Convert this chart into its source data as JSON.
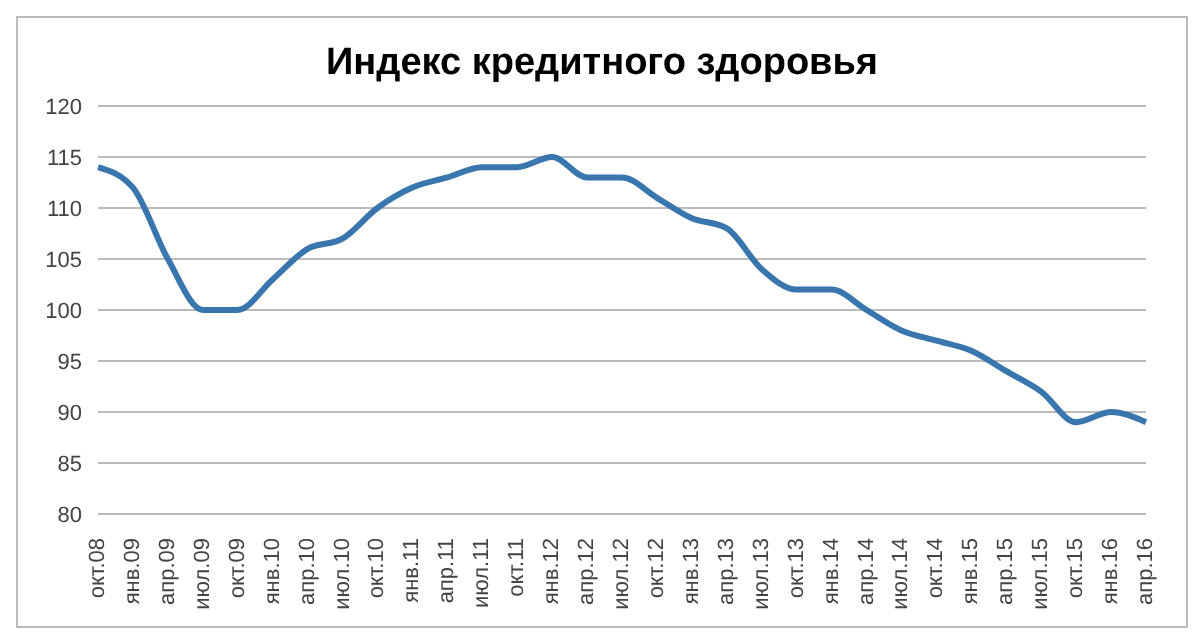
{
  "chart_data": {
    "type": "line",
    "title": "Индекс кредитного здоровья",
    "categories": [
      "окт.08",
      "янв.09",
      "апр.09",
      "июл.09",
      "окт.09",
      "янв.10",
      "апр.10",
      "июл.10",
      "окт.10",
      "янв.11",
      "апр.11",
      "июл.11",
      "окт.11",
      "янв.12",
      "апр.12",
      "июл.12",
      "окт.12",
      "янв.13",
      "апр.13",
      "июл.13",
      "окт.13",
      "янв.14",
      "апр.14",
      "июл.14",
      "окт.14",
      "янв.15",
      "апр.15",
      "июл.15",
      "окт.15",
      "янв.16",
      "апр.16"
    ],
    "series": [
      {
        "color": "#3a76ae",
        "values": [
          114,
          112,
          105,
          100,
          100,
          103,
          106,
          107,
          110,
          112,
          113,
          114,
          114,
          115,
          113,
          113,
          111,
          109,
          108,
          104,
          102,
          102,
          100,
          98,
          97,
          96,
          94,
          92,
          89,
          90,
          89
        ]
      }
    ],
    "ylim": [
      80,
      120
    ],
    "yticks": [
      80,
      85,
      90,
      95,
      100,
      105,
      110,
      115,
      120
    ],
    "grid": "y",
    "legend": false,
    "marker": "none",
    "line_style": "solid"
  }
}
